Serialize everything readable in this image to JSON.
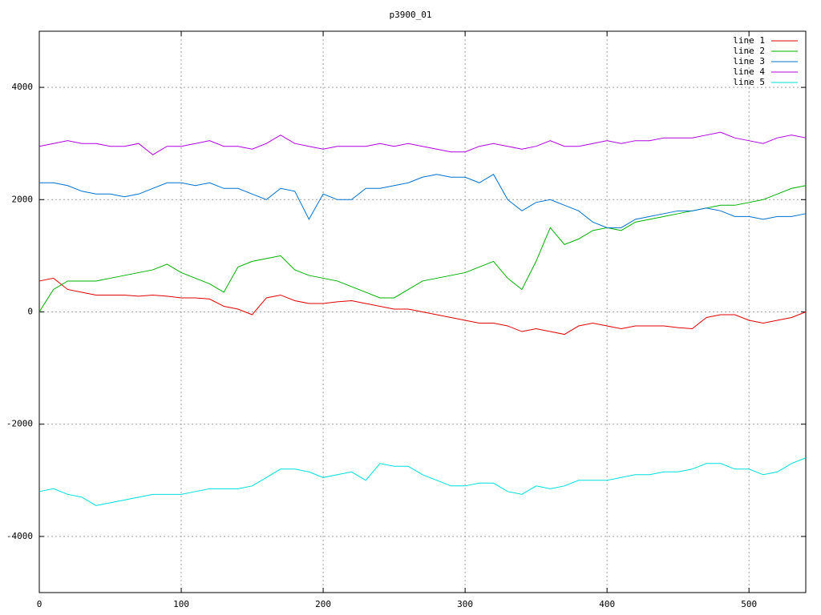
{
  "chart_data": {
    "type": "line",
    "title": "p3900_01",
    "x": [
      0,
      10,
      20,
      30,
      40,
      50,
      60,
      70,
      80,
      90,
      100,
      110,
      120,
      130,
      140,
      150,
      160,
      170,
      180,
      190,
      200,
      210,
      220,
      230,
      240,
      250,
      260,
      270,
      280,
      290,
      300,
      310,
      320,
      330,
      340,
      350,
      360,
      370,
      380,
      390,
      400,
      410,
      420,
      430,
      440,
      450,
      460,
      470,
      480,
      490,
      500,
      510,
      520,
      530,
      540
    ],
    "series": [
      {
        "name": "line 1",
        "color": "#e00000",
        "values": [
          550,
          600,
          400,
          350,
          300,
          300,
          300,
          280,
          300,
          280,
          250,
          250,
          230,
          100,
          50,
          -50,
          250,
          300,
          200,
          150,
          150,
          180,
          200,
          150,
          100,
          50,
          50,
          0,
          -50,
          -100,
          -150,
          -200,
          -200,
          -250,
          -350,
          -300,
          -350,
          -400,
          -250,
          -200,
          -250,
          -300,
          -250,
          -250,
          -250,
          -280,
          -300,
          -100,
          -50,
          -50,
          -150,
          -200,
          -150,
          -100,
          0
        ]
      },
      {
        "name": "line 2",
        "color": "#00b000",
        "values": [
          0,
          400,
          550,
          550,
          550,
          600,
          650,
          700,
          750,
          850,
          700,
          600,
          500,
          350,
          800,
          900,
          950,
          1000,
          750,
          650,
          600,
          550,
          450,
          350,
          250,
          250,
          400,
          550,
          600,
          650,
          700,
          800,
          900,
          600,
          400,
          900,
          1500,
          1200,
          1300,
          1450,
          1500,
          1450,
          1600,
          1650,
          1700,
          1750,
          1800,
          1850,
          1900,
          1900,
          1950,
          2000,
          2100,
          2200,
          2250
        ]
      },
      {
        "name": "line 3",
        "color": "#0070d0",
        "values": [
          2300,
          2300,
          2250,
          2150,
          2100,
          2100,
          2050,
          2100,
          2200,
          2300,
          2300,
          2250,
          2300,
          2200,
          2200,
          2100,
          2000,
          2200,
          2150,
          1650,
          2100,
          2000,
          2000,
          2200,
          2200,
          2250,
          2300,
          2400,
          2450,
          2400,
          2400,
          2300,
          2450,
          2000,
          1800,
          1950,
          2000,
          1900,
          1800,
          1600,
          1500,
          1500,
          1650,
          1700,
          1750,
          1800,
          1800,
          1850,
          1800,
          1700,
          1700,
          1650,
          1700,
          1700,
          1750
        ]
      },
      {
        "name": "line 4",
        "color": "#b000e0",
        "values": [
          2950,
          3000,
          3050,
          3000,
          3000,
          2950,
          2950,
          3000,
          2800,
          2950,
          2950,
          3000,
          3050,
          2950,
          2950,
          2900,
          3000,
          3150,
          3000,
          2950,
          2900,
          2950,
          2950,
          2950,
          3000,
          2950,
          3000,
          2950,
          2900,
          2850,
          2850,
          2950,
          3000,
          2950,
          2900,
          2950,
          3050,
          2950,
          2950,
          3000,
          3050,
          3000,
          3050,
          3050,
          3100,
          3100,
          3100,
          3150,
          3200,
          3100,
          3050,
          3000,
          3100,
          3150,
          3100
        ]
      },
      {
        "name": "line 5",
        "color": "#00dddd",
        "values": [
          -3200,
          -3150,
          -3250,
          -3300,
          -3450,
          -3400,
          -3350,
          -3300,
          -3250,
          -3250,
          -3250,
          -3200,
          -3150,
          -3150,
          -3150,
          -3100,
          -2950,
          -2800,
          -2800,
          -2850,
          -2950,
          -2900,
          -2850,
          -3000,
          -2700,
          -2750,
          -2750,
          -2900,
          -3000,
          -3100,
          -3100,
          -3050,
          -3050,
          -3200,
          -3250,
          -3100,
          -3150,
          -3100,
          -3000,
          -3000,
          -3000,
          -2950,
          -2900,
          -2900,
          -2850,
          -2850,
          -2800,
          -2700,
          -2700,
          -2800,
          -2800,
          -2900,
          -2850,
          -2700,
          -2600
        ]
      }
    ],
    "xlim": [
      0,
      540
    ],
    "xticks": [
      0,
      100,
      200,
      300,
      400,
      500
    ],
    "ylim": [
      -5000,
      5000
    ],
    "yticks": [
      -4000,
      -2000,
      0,
      2000,
      4000
    ],
    "grid": true,
    "legend": "top-right"
  }
}
